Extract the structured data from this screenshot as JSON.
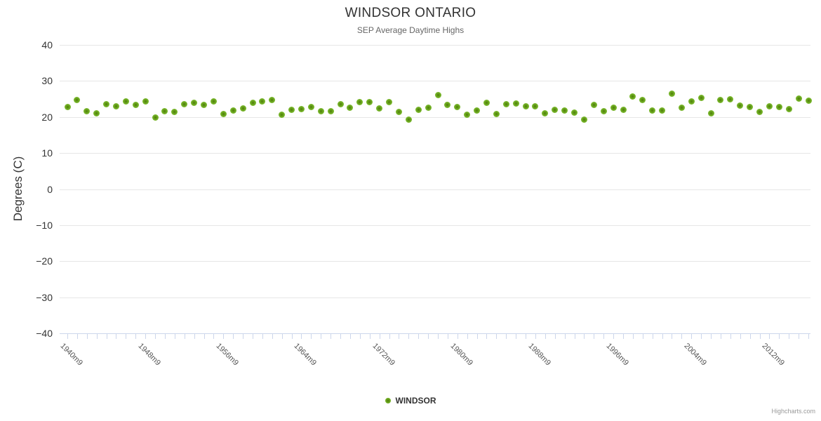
{
  "title": "WINDSOR ONTARIO",
  "subtitle": "SEP Average Daytime Highs",
  "y_axis_title": "Degrees (C)",
  "legend": {
    "label": "WINDSOR"
  },
  "credits": "Highcharts.com",
  "colors": {
    "series": "#77b52a",
    "grid": "#e6e6e6",
    "axis": "#ccd6eb"
  },
  "chart_data": {
    "type": "scatter",
    "title": "WINDSOR ONTARIO",
    "subtitle": "SEP Average Daytime Highs",
    "xlabel": "",
    "ylabel": "Degrees (C)",
    "ylim": [
      -40,
      40
    ],
    "y_ticks": [
      40,
      30,
      20,
      10,
      0,
      -10,
      -20,
      -30,
      -40
    ],
    "grid": true,
    "legend_position": "bottom-center",
    "x_tick_labels": [
      "1940m9",
      "1948m9",
      "1956m9",
      "1964m9",
      "1972m9",
      "1980m9",
      "1988m9",
      "1996m9",
      "2004m9",
      "2012m9"
    ],
    "x_tick_label_years": [
      1940,
      1948,
      1956,
      1964,
      1972,
      1980,
      1988,
      1996,
      2004,
      2012
    ],
    "x_range_years": [
      1940,
      2016
    ],
    "series": [
      {
        "name": "WINDSOR",
        "color": "#77b52a",
        "x": [
          1940,
          1941,
          1942,
          1943,
          1944,
          1945,
          1946,
          1947,
          1948,
          1949,
          1950,
          1951,
          1952,
          1953,
          1954,
          1955,
          1956,
          1957,
          1958,
          1959,
          1960,
          1961,
          1962,
          1963,
          1964,
          1965,
          1966,
          1967,
          1968,
          1969,
          1970,
          1971,
          1972,
          1973,
          1974,
          1975,
          1976,
          1977,
          1978,
          1979,
          1980,
          1981,
          1982,
          1983,
          1984,
          1985,
          1986,
          1987,
          1988,
          1989,
          1990,
          1991,
          1992,
          1993,
          1994,
          1995,
          1996,
          1997,
          1998,
          1999,
          2000,
          2001,
          2002,
          2003,
          2004,
          2005,
          2006,
          2007,
          2008,
          2009,
          2010,
          2011,
          2012,
          2013,
          2014,
          2015,
          2016
        ],
        "values": [
          22.7,
          24.7,
          21.6,
          21.0,
          23.6,
          22.9,
          24.3,
          23.4,
          24.3,
          19.9,
          21.5,
          21.4,
          23.6,
          23.9,
          23.3,
          24.3,
          20.8,
          21.7,
          22.3,
          24.0,
          24.3,
          24.7,
          20.6,
          21.9,
          22.1,
          22.8,
          21.5,
          21.5,
          23.6,
          22.6,
          24.2,
          24.2,
          22.3,
          24.1,
          21.3,
          19.2,
          21.9,
          22.6,
          26.0,
          23.4,
          22.8,
          20.6,
          21.7,
          23.9,
          20.8,
          23.5,
          23.8,
          22.9,
          22.9,
          21.0,
          22.0,
          21.8,
          21.2,
          19.2,
          23.4,
          21.5,
          22.6,
          21.9,
          25.6,
          24.7,
          21.7,
          21.7,
          26.5,
          22.5,
          24.3,
          25.2,
          21.0,
          24.7,
          24.8,
          23.1,
          22.7,
          21.4,
          22.9,
          22.8,
          22.1,
          25.1,
          24.5
        ]
      }
    ]
  }
}
